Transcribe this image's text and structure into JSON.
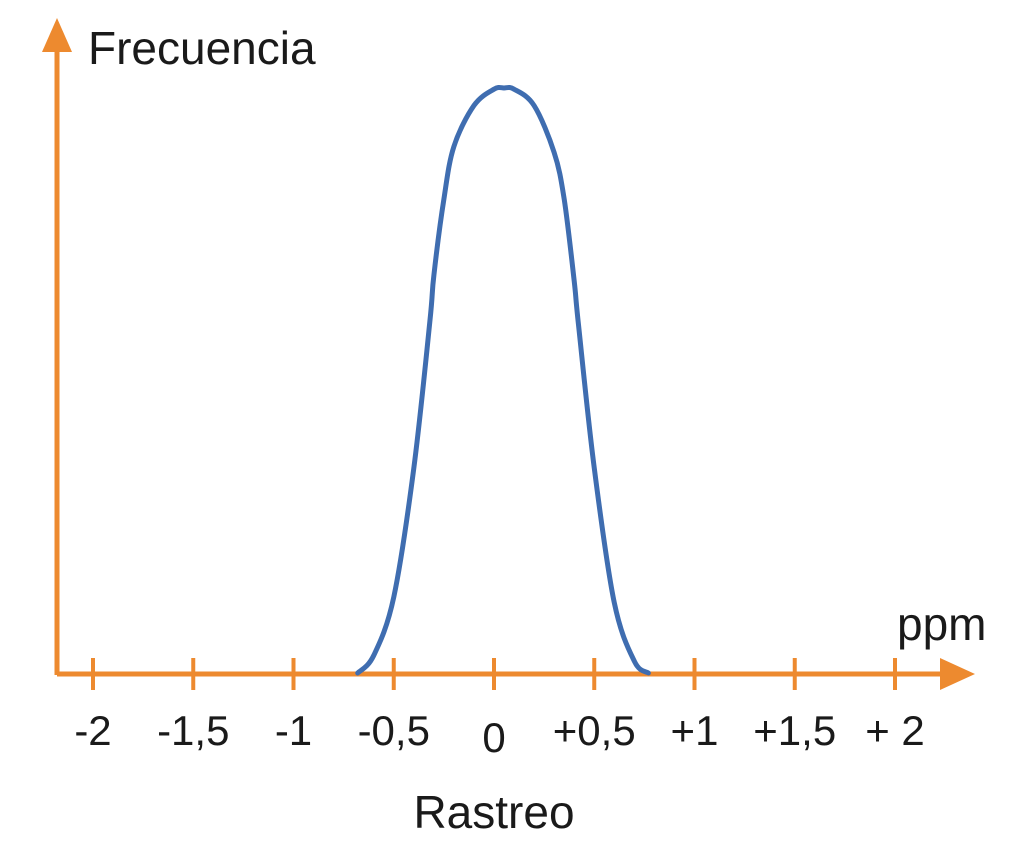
{
  "chart_data": {
    "type": "line",
    "xlabel": "Rastreo",
    "ylabel": "Frecuencia",
    "x_unit": "ppm",
    "xlim": [
      -2,
      2
    ],
    "ylim": [
      0,
      1
    ],
    "grid": false,
    "ticks": [
      {
        "value": -2,
        "label": "-2"
      },
      {
        "value": -1.5,
        "label": "-1,5"
      },
      {
        "value": -1,
        "label": "-1"
      },
      {
        "value": -0.5,
        "label": "-0,5"
      },
      {
        "value": 0,
        "label": "0"
      },
      {
        "value": 0.5,
        "label": "+0,5"
      },
      {
        "value": 1,
        "label": "+1"
      },
      {
        "value": 1.5,
        "label": "+1,5"
      },
      {
        "value": 2,
        "label": "+ 2"
      }
    ],
    "series": [
      {
        "x": [
          -0.68,
          -0.6,
          -0.5,
          -0.4,
          -0.32,
          -0.3,
          -0.25,
          -0.2,
          -0.1,
          0,
          0.05,
          0.1,
          0.2,
          0.3,
          0.35,
          0.4,
          0.42,
          0.5,
          0.6,
          0.7,
          0.77
        ],
        "y": [
          0,
          0.03,
          0.13,
          0.35,
          0.6,
          0.68,
          0.81,
          0.9,
          0.97,
          0.998,
          1.0,
          0.998,
          0.97,
          0.89,
          0.81,
          0.67,
          0.6,
          0.35,
          0.12,
          0.02,
          0
        ]
      }
    ],
    "colors": {
      "axis": "#ed8a2f",
      "curve": "#3f6db0"
    }
  }
}
